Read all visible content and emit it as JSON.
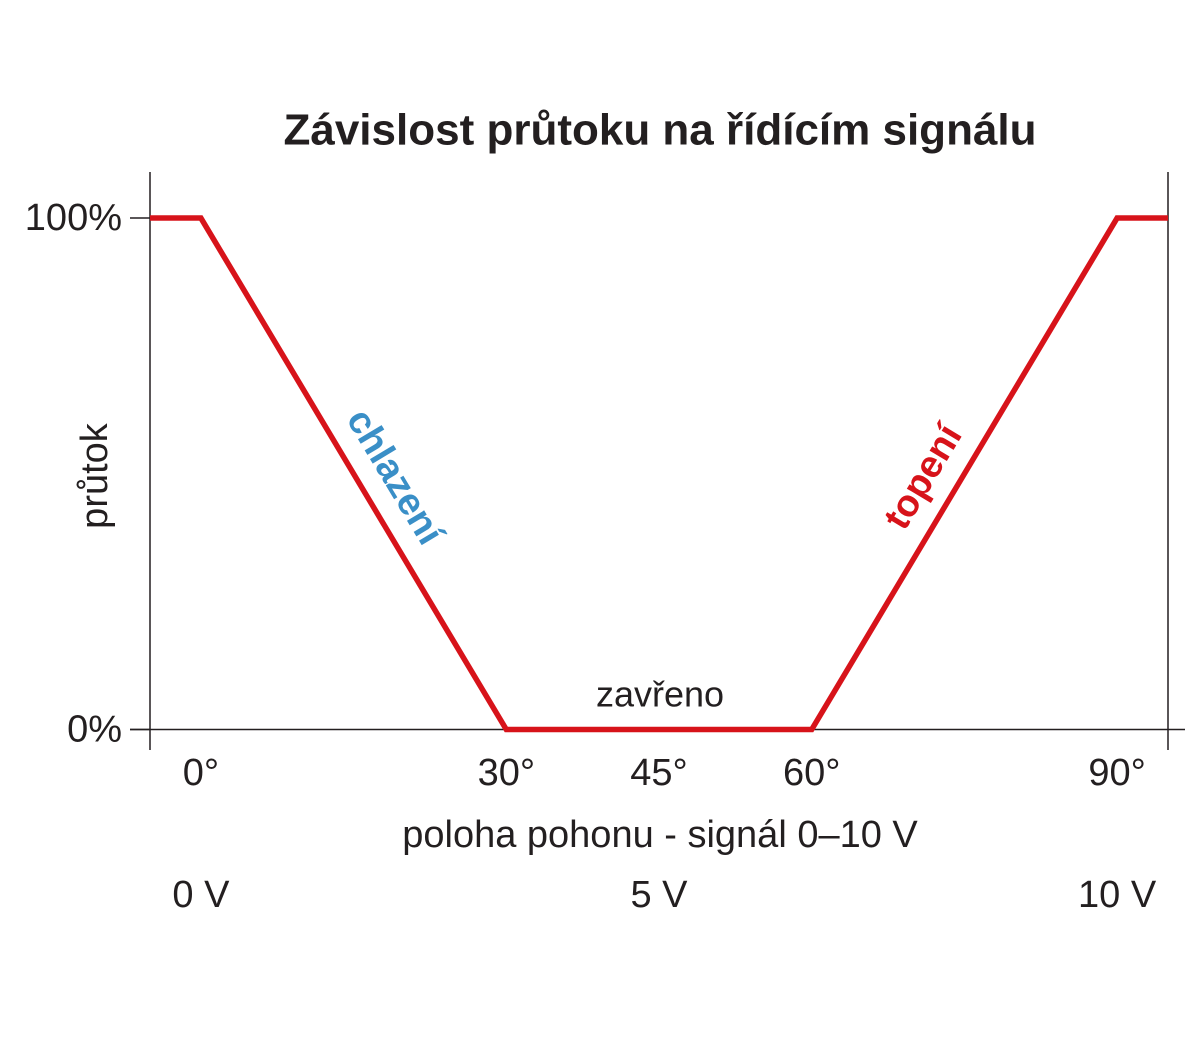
{
  "chart_data": {
    "type": "line",
    "title": "Závislost průtoku na řídícím signálu",
    "x_label": "poloha pohonu - signál 0–10 V",
    "y_label": "průtok",
    "x": [
      -5,
      0,
      30,
      60,
      90,
      95
    ],
    "series": [
      {
        "name": "průtok",
        "color": "#d7131a",
        "values": [
          100,
          100,
          0,
          0,
          100,
          100
        ]
      }
    ],
    "xlim": [
      -5,
      95
    ],
    "ylim": [
      -4,
      109
    ],
    "xticks": [
      {
        "value": 0,
        "label": "0°"
      },
      {
        "value": 30,
        "label": "30°"
      },
      {
        "value": 45,
        "label": "45°"
      },
      {
        "value": 60,
        "label": "60°"
      },
      {
        "value": 90,
        "label": "90°"
      }
    ],
    "x2ticks": [
      {
        "value": 0,
        "label": "0 V"
      },
      {
        "value": 45,
        "label": "5 V"
      },
      {
        "value": 90,
        "label": "10 V"
      }
    ],
    "yticks": [
      {
        "value": 0,
        "label": "0%"
      },
      {
        "value": 100,
        "label": "100%"
      }
    ],
    "annotations": [
      {
        "text": "chlazení",
        "color": "#3a8fc7"
      },
      {
        "text": "topení",
        "color": "#d7131a"
      },
      {
        "text": "zavřeno",
        "color": "#231f20"
      }
    ]
  }
}
